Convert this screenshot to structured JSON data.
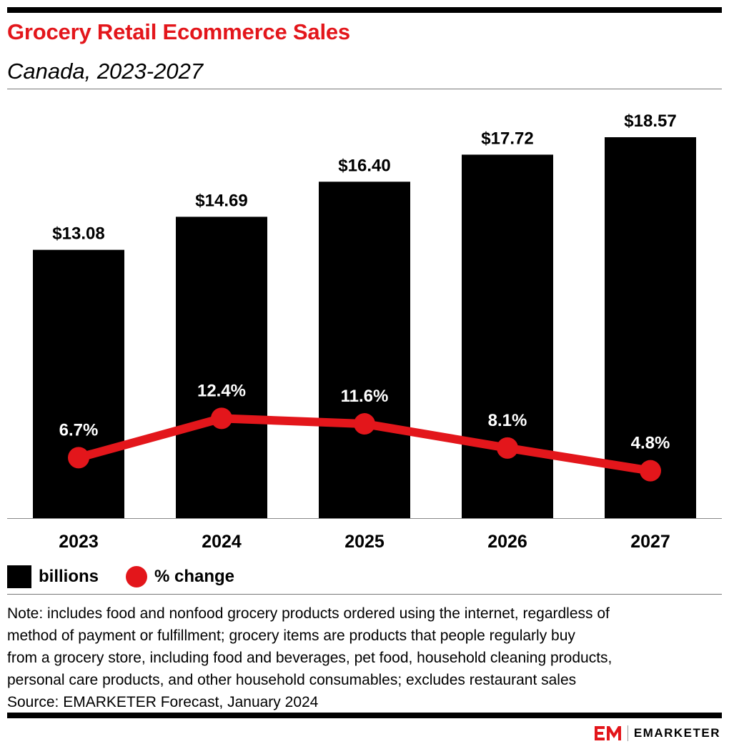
{
  "header": {
    "title": "Grocery Retail Ecommerce Sales",
    "subtitle": "Canada, 2023-2027"
  },
  "chart_data": {
    "type": "bar",
    "categories": [
      "2023",
      "2024",
      "2025",
      "2026",
      "2027"
    ],
    "series": [
      {
        "name": "billions",
        "type": "bar",
        "values": [
          13.08,
          14.69,
          16.4,
          17.72,
          18.57
        ],
        "labels": [
          "$13.08",
          "$14.69",
          "$16.40",
          "$17.72",
          "$18.57"
        ],
        "color": "#000000"
      },
      {
        "name": "% change",
        "type": "line",
        "values": [
          6.7,
          12.4,
          11.6,
          8.1,
          4.8
        ],
        "labels": [
          "6.7%",
          "12.4%",
          "11.6%",
          "8.1%",
          "4.8%"
        ],
        "color": "#e3161b"
      }
    ],
    "title": "Grocery Retail Ecommerce Sales",
    "subtitle": "Canada, 2023-2027",
    "grid": false,
    "legend": "bottom-left"
  },
  "legend": {
    "bars_label": "billions",
    "line_label": "% change"
  },
  "note": {
    "lines": [
      "Note: includes food and nonfood grocery products ordered using the internet, regardless of",
      "method of payment or fulfillment; grocery items are products that people regularly buy",
      "from a grocery store, including food and beverages, pet food, household cleaning products,",
      "personal care products, and other household consumables; excludes restaurant sales"
    ],
    "source": "Source: EMARKETER Forecast, January 2024"
  },
  "brand": {
    "name": "EMARKETER",
    "logo_icon": "em-logo-icon",
    "color": "#e3161b"
  }
}
